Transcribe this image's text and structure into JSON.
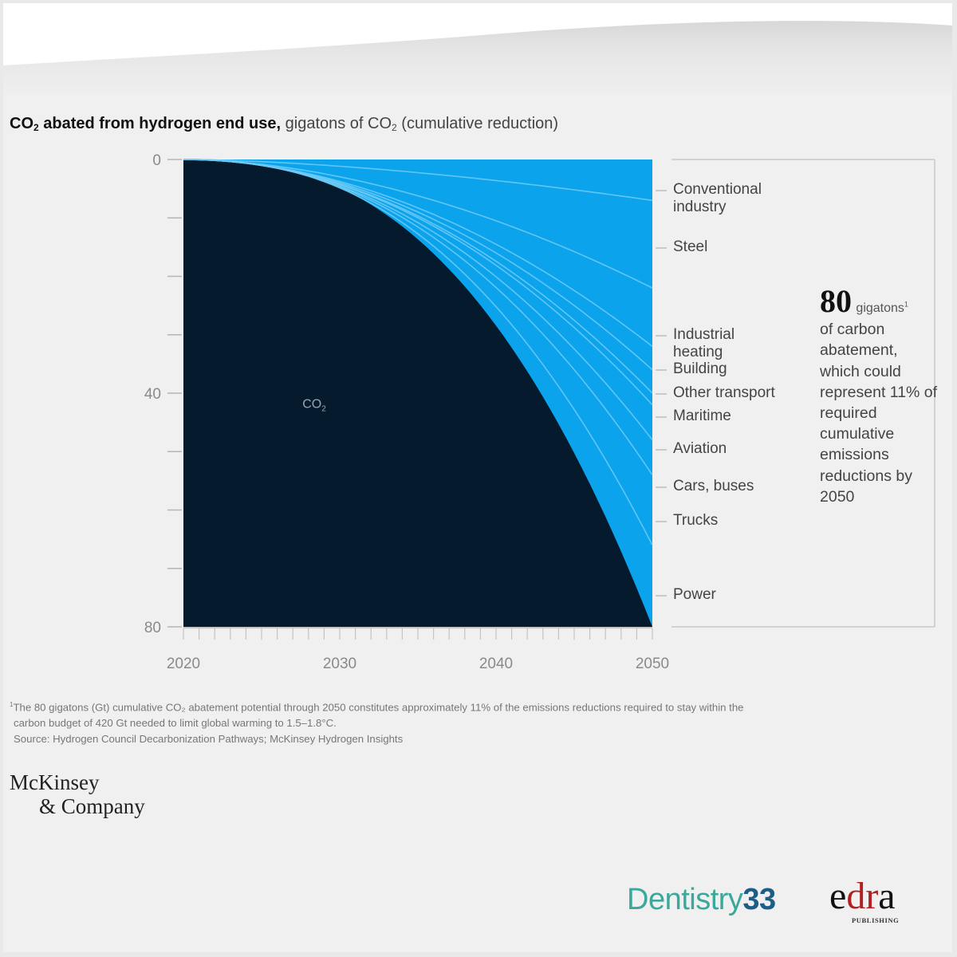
{
  "header": {
    "title_bold": "CO",
    "title_bold_sub": "2",
    "title_bold_rest": " abated from hydrogen end use,",
    "title_light": " gigatons of CO",
    "title_light_sub": "2",
    "title_light_rest": " (cumulative reduction)"
  },
  "colors": {
    "co2_area": "#051a2d",
    "sector_area": "#0aa3ec",
    "sector_line": "#6ccaf5",
    "axis": "#b5b5b5",
    "background": "#f0f0f0"
  },
  "chart_data": {
    "type": "area",
    "title": "CO2 abated from hydrogen end use, gigatons of CO2 (cumulative reduction)",
    "xlabel": "",
    "ylabel": "gigatons of CO2 (cumulative reduction)",
    "xlim": [
      2020,
      2050
    ],
    "ylim": [
      0,
      80
    ],
    "y_inverted": true,
    "x_ticks": [
      2020,
      2030,
      2040,
      2050
    ],
    "y_ticks": [
      0,
      40,
      80
    ],
    "inner_label": "CO",
    "inner_label_sub": "2",
    "total_2050": 80,
    "series": [
      {
        "name": "Conventional industry",
        "label_lines": "Conventional\nindustry",
        "cumulative_2050": 7
      },
      {
        "name": "Steel",
        "label_lines": "Steel",
        "cumulative_2050": 22
      },
      {
        "name": "Industrial heating",
        "label_lines": "Industrial\nheating",
        "cumulative_2050": 32
      },
      {
        "name": "Building",
        "label_lines": "Building",
        "cumulative_2050": 36
      },
      {
        "name": "Other transport",
        "label_lines": "Other transport",
        "cumulative_2050": 40
      },
      {
        "name": "Maritime",
        "label_lines": "Maritime",
        "cumulative_2050": 42
      },
      {
        "name": "Aviation",
        "label_lines": "Aviation",
        "cumulative_2050": 48
      },
      {
        "name": "Cars, buses",
        "label_lines": "Cars, buses",
        "cumulative_2050": 54
      },
      {
        "name": "Trucks",
        "label_lines": "Trucks",
        "cumulative_2050": 66
      },
      {
        "name": "Power",
        "label_lines": "Power",
        "cumulative_2050": 80
      }
    ],
    "annotation": {
      "value": "80",
      "unit": "gigatons",
      "footnote_mark": "1",
      "text": "of carbon abatement, which could represent 11% of required cumulative emissions reductions by 2050"
    }
  },
  "footnote": {
    "mark": "1",
    "line1": "The 80 gigatons (Gt) cumulative CO₂ abatement potential through 2050 constitutes approximately 11% of the emissions reductions required to stay within the",
    "line2": "carbon budget of 420 Gt needed to limit global warming to 1.5–1.8°C.",
    "source": "Source: Hydrogen Council Decarbonization Pathways; McKinsey Hydrogen Insights"
  },
  "logos": {
    "mckinsey_line1": "McKinsey",
    "mckinsey_line2": "& Company",
    "dentistry_text": "Dentistry",
    "dentistry_number": "33",
    "edra_e": "e",
    "edra_dr": "dr",
    "edra_a": "a",
    "edra_publishing": "PUBLISHING"
  }
}
